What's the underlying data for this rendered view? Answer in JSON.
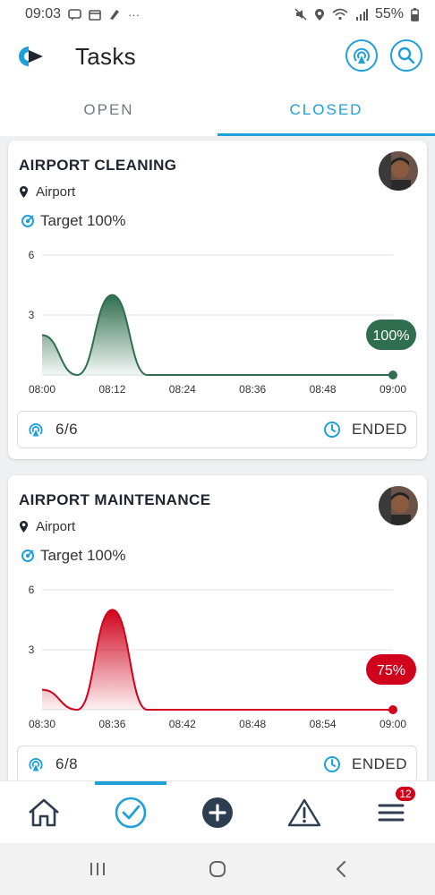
{
  "status_bar": {
    "time": "09:03",
    "more": "···",
    "battery_percent": "55%",
    "icons": [
      "message-icon",
      "calendar-icon",
      "tag-icon",
      "mute-icon",
      "location-icon",
      "wifi-icon",
      "signal-icon",
      "battery-icon"
    ]
  },
  "app_bar": {
    "title": "Tasks",
    "icons": [
      "app-logo",
      "beacon-icon",
      "search-icon"
    ]
  },
  "tabs": [
    {
      "label": "OPEN",
      "active": false
    },
    {
      "label": "CLOSED",
      "active": true
    }
  ],
  "colors": {
    "accent": "#1fa0d8",
    "green": "#2f6e4f",
    "red": "#d0021b",
    "badge": "#d0021b"
  },
  "cards": [
    {
      "title": "AIRPORT CLEANING",
      "location": "Airport",
      "target": "Target 100%",
      "progress_label": "100%",
      "count": "6/6",
      "status": "ENDED",
      "color": "#2f6e4f",
      "chart_data": {
        "type": "area",
        "x": [
          "08:00",
          "08:06",
          "08:12",
          "08:18",
          "08:24",
          "08:30",
          "08:36",
          "08:42",
          "08:48",
          "08:54",
          "09:00"
        ],
        "y": [
          2,
          0,
          4,
          0,
          0,
          0,
          0,
          0,
          0,
          0,
          0
        ],
        "x_ticks": [
          "08:00",
          "08:12",
          "08:24",
          "08:36",
          "08:48",
          "09:00"
        ],
        "y_ticks": [
          "6",
          "3"
        ],
        "ylim": [
          0,
          6
        ],
        "grid": true
      }
    },
    {
      "title": "AIRPORT MAINTENANCE",
      "location": "Airport",
      "target": "Target 100%",
      "progress_label": "75%",
      "count": "6/8",
      "status": "ENDED",
      "color": "#d0021b",
      "chart_data": {
        "type": "area",
        "x": [
          "08:30",
          "08:33",
          "08:36",
          "08:39",
          "08:42",
          "08:45",
          "08:48",
          "08:51",
          "08:54",
          "08:57",
          "09:00"
        ],
        "y": [
          1,
          0,
          5,
          0,
          0,
          0,
          0,
          0,
          0,
          0,
          0
        ],
        "x_ticks": [
          "08:30",
          "08:36",
          "08:42",
          "08:48",
          "08:54",
          "09:00"
        ],
        "y_ticks": [
          "6",
          "3"
        ],
        "ylim": [
          0,
          6
        ],
        "grid": true
      }
    }
  ],
  "bottom_nav": [
    {
      "icon": "home-icon",
      "active": false
    },
    {
      "icon": "check-circle-icon",
      "active": true
    },
    {
      "icon": "add-icon",
      "active": false
    },
    {
      "icon": "warning-icon",
      "active": false
    },
    {
      "icon": "menu-icon",
      "active": false,
      "badge": "12"
    }
  ],
  "system_nav": [
    "recent-apps-icon",
    "home-button-icon",
    "back-icon"
  ]
}
